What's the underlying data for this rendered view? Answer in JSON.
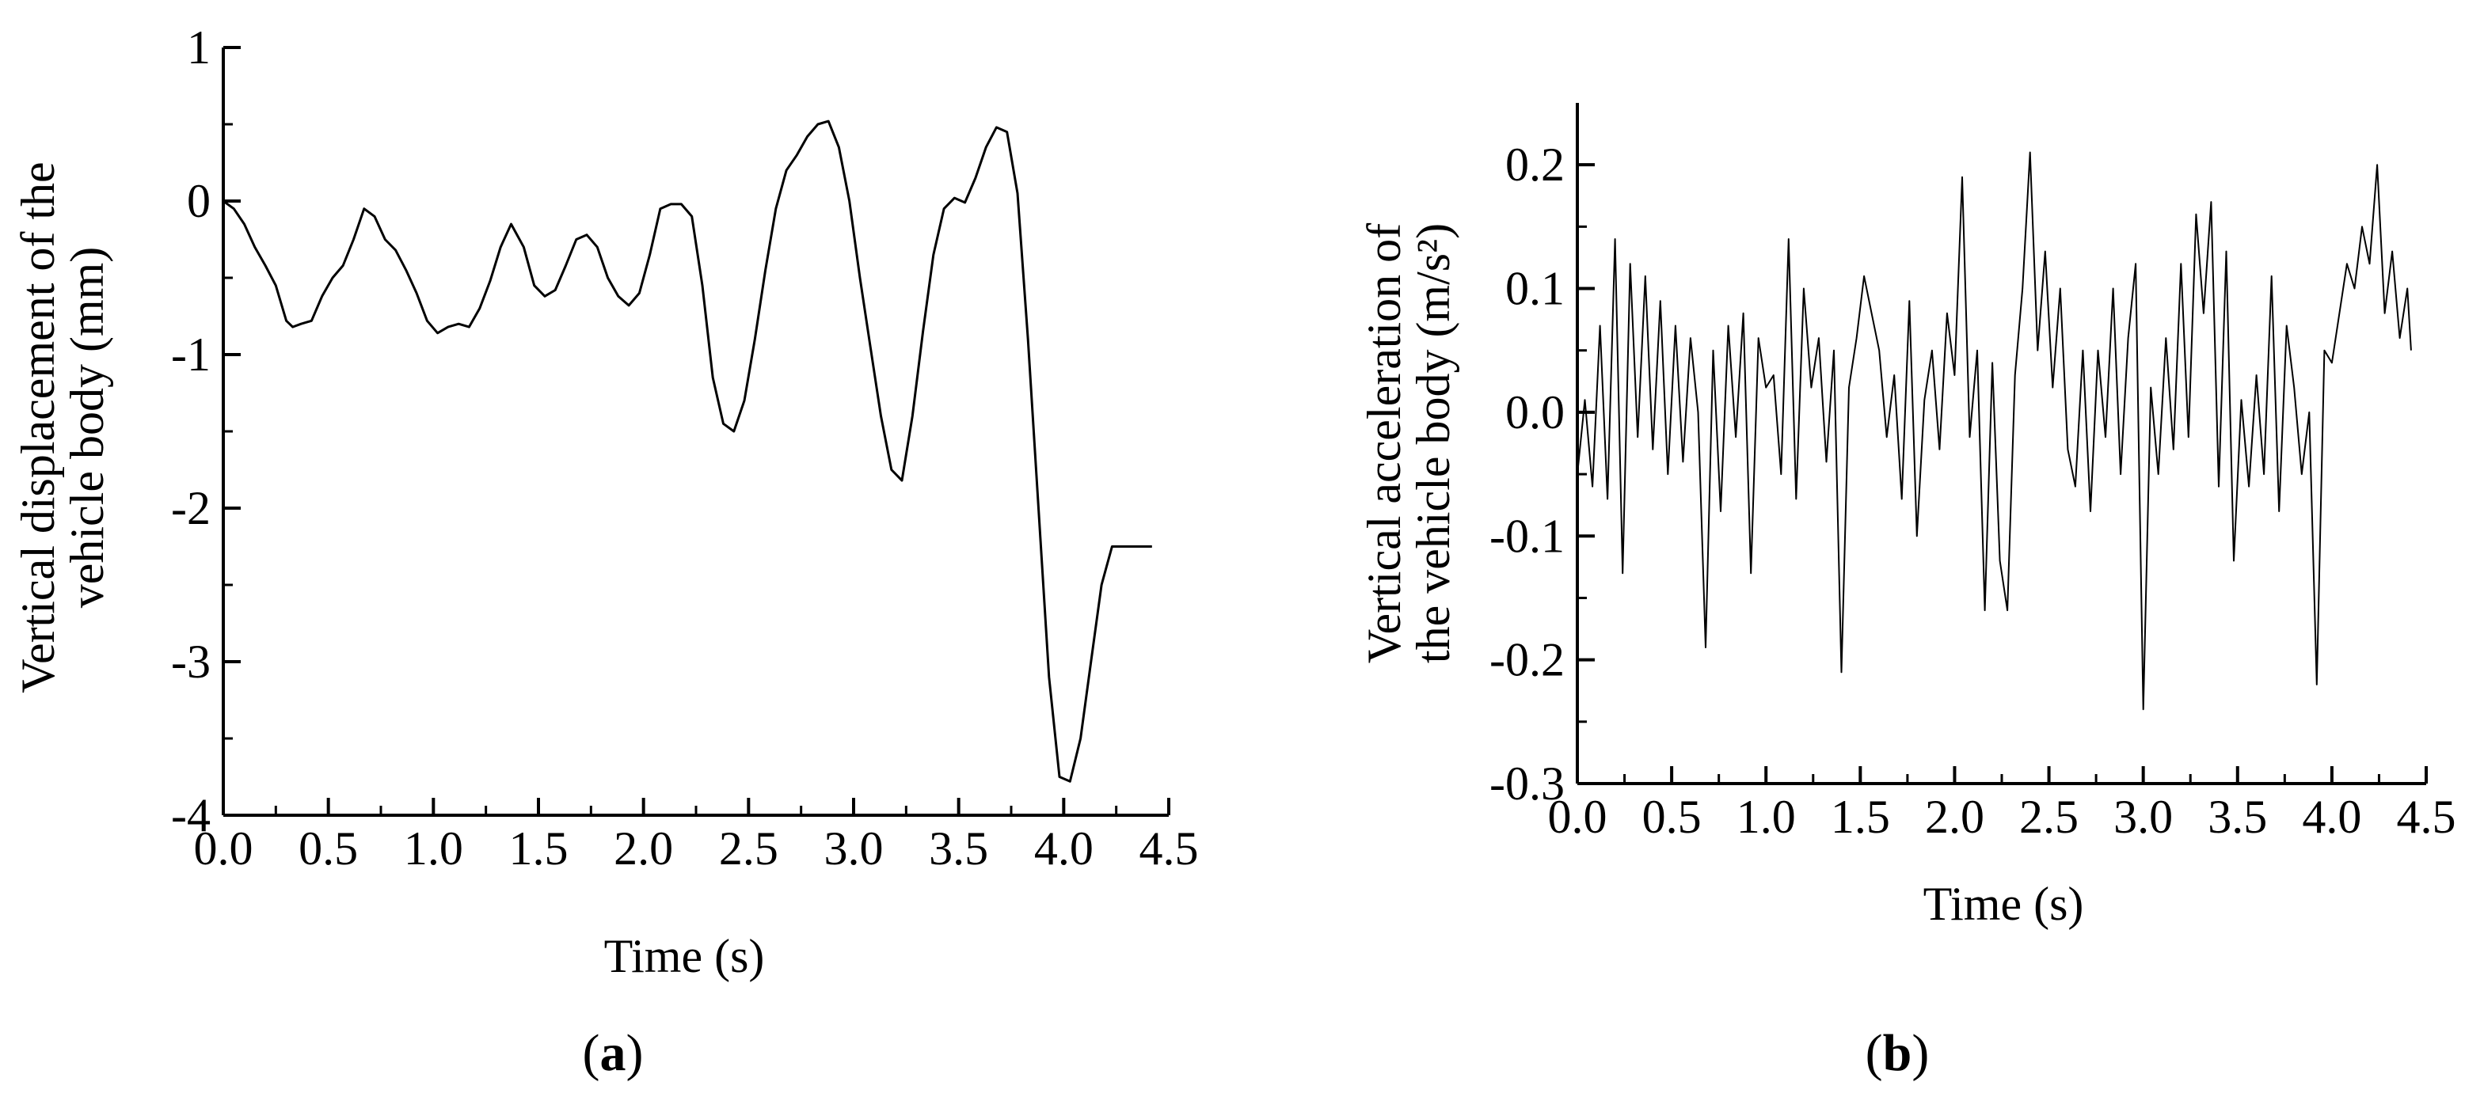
{
  "chart_data": [
    {
      "type": "line",
      "panel_label": {
        "open": "(",
        "letter": "a",
        "close": ")"
      },
      "xlabel": "Time (s)",
      "ylabel": [
        "Vertical displacement of the",
        "vehicle body (mm)"
      ],
      "xlim": [
        0.0,
        4.5
      ],
      "ylim": [
        -4,
        1
      ],
      "xticks": [
        "0.0",
        "0.5",
        "1.0",
        "1.5",
        "2.0",
        "2.5",
        "3.0",
        "3.5",
        "4.0",
        "4.5"
      ],
      "yticks": [
        "1",
        "0",
        "-1",
        "-2",
        "-3",
        "-4"
      ],
      "grid": false,
      "series": [
        {
          "x": [
            0.0,
            0.05,
            0.1,
            0.15,
            0.2,
            0.25,
            0.3,
            0.33,
            0.37,
            0.42,
            0.47,
            0.52,
            0.57,
            0.62,
            0.67,
            0.72,
            0.77,
            0.82,
            0.87,
            0.92,
            0.97,
            1.02,
            1.07,
            1.12,
            1.17,
            1.22,
            1.27,
            1.32,
            1.37,
            1.43,
            1.48,
            1.53,
            1.58,
            1.63,
            1.68,
            1.73,
            1.78,
            1.83,
            1.88,
            1.93,
            1.98,
            2.03,
            2.08,
            2.13,
            2.18,
            2.23,
            2.28,
            2.33,
            2.38,
            2.43,
            2.48,
            2.53,
            2.58,
            2.63,
            2.68,
            2.73,
            2.78,
            2.83,
            2.88,
            2.93,
            2.98,
            3.03,
            3.08,
            3.13,
            3.18,
            3.23,
            3.28,
            3.33,
            3.38,
            3.43,
            3.48,
            3.53,
            3.58,
            3.63,
            3.68,
            3.73,
            3.78,
            3.83,
            3.88,
            3.93,
            3.98,
            4.03,
            4.08,
            4.13,
            4.18,
            4.23,
            4.28,
            4.33,
            4.38,
            4.42
          ],
          "values": [
            0.0,
            -0.05,
            -0.15,
            -0.3,
            -0.42,
            -0.55,
            -0.78,
            -0.82,
            -0.8,
            -0.78,
            -0.62,
            -0.5,
            -0.42,
            -0.25,
            -0.05,
            -0.1,
            -0.25,
            -0.32,
            -0.45,
            -0.6,
            -0.78,
            -0.86,
            -0.82,
            -0.8,
            -0.82,
            -0.7,
            -0.52,
            -0.3,
            -0.15,
            -0.3,
            -0.55,
            -0.62,
            -0.58,
            -0.42,
            -0.25,
            -0.22,
            -0.3,
            -0.5,
            -0.62,
            -0.68,
            -0.6,
            -0.35,
            -0.05,
            -0.02,
            -0.02,
            -0.1,
            -0.55,
            -1.15,
            -1.45,
            -1.5,
            -1.3,
            -0.9,
            -0.45,
            -0.05,
            0.2,
            0.3,
            0.42,
            0.5,
            0.52,
            0.35,
            0.0,
            -0.5,
            -0.95,
            -1.4,
            -1.75,
            -1.82,
            -1.4,
            -0.85,
            -0.35,
            -0.05,
            0.02,
            -0.01,
            0.15,
            0.35,
            0.48,
            0.45,
            0.05,
            -0.9,
            -2.0,
            -3.1,
            -3.75,
            -3.78,
            -3.5,
            -3.0,
            -2.5,
            -2.25,
            -2.25,
            -2.25,
            -2.25,
            -2.25
          ]
        }
      ]
    },
    {
      "type": "line",
      "panel_label": {
        "open": "(",
        "letter": "b",
        "close": ")"
      },
      "xlabel": "Time (s)",
      "ylabel": [
        "Vertical acceleration of",
        "the vehicle body (m/s²)"
      ],
      "xlim": [
        0.0,
        4.5
      ],
      "ylim": [
        -0.3,
        0.25
      ],
      "xticks": [
        "0.0",
        "0.5",
        "1.0",
        "1.5",
        "2.0",
        "2.5",
        "3.0",
        "3.5",
        "4.0",
        "4.5"
      ],
      "yticks": [
        "0.2",
        "0.1",
        "0.0",
        "-0.1",
        "-0.2",
        "-0.3"
      ],
      "grid": false,
      "series": [
        {
          "x": [
            0.0,
            0.04,
            0.08,
            0.12,
            0.16,
            0.2,
            0.24,
            0.28,
            0.32,
            0.36,
            0.4,
            0.44,
            0.48,
            0.52,
            0.56,
            0.6,
            0.64,
            0.68,
            0.72,
            0.76,
            0.8,
            0.84,
            0.88,
            0.92,
            0.96,
            1.0,
            1.04,
            1.08,
            1.12,
            1.16,
            1.2,
            1.24,
            1.28,
            1.32,
            1.36,
            1.4,
            1.44,
            1.48,
            1.52,
            1.56,
            1.6,
            1.64,
            1.68,
            1.72,
            1.76,
            1.8,
            1.84,
            1.88,
            1.92,
            1.96,
            2.0,
            2.04,
            2.08,
            2.12,
            2.16,
            2.2,
            2.24,
            2.28,
            2.32,
            2.36,
            2.4,
            2.44,
            2.48,
            2.52,
            2.56,
            2.6,
            2.64,
            2.68,
            2.72,
            2.76,
            2.8,
            2.84,
            2.88,
            2.92,
            2.96,
            3.0,
            3.04,
            3.08,
            3.12,
            3.16,
            3.2,
            3.24,
            3.28,
            3.32,
            3.36,
            3.4,
            3.44,
            3.48,
            3.52,
            3.56,
            3.6,
            3.64,
            3.68,
            3.72,
            3.76,
            3.8,
            3.84,
            3.88,
            3.92,
            3.96,
            4.0,
            4.04,
            4.08,
            4.12,
            4.16,
            4.2,
            4.24,
            4.28,
            4.32,
            4.36,
            4.4,
            4.42
          ],
          "values": [
            -0.05,
            0.01,
            -0.06,
            0.07,
            -0.07,
            0.14,
            -0.13,
            0.12,
            -0.02,
            0.11,
            -0.03,
            0.09,
            -0.05,
            0.07,
            -0.04,
            0.06,
            0.0,
            -0.19,
            0.05,
            -0.08,
            0.07,
            -0.02,
            0.08,
            -0.13,
            0.06,
            0.02,
            0.03,
            -0.05,
            0.14,
            -0.07,
            0.1,
            0.02,
            0.06,
            -0.04,
            0.05,
            -0.21,
            0.02,
            0.06,
            0.11,
            0.08,
            0.05,
            -0.02,
            0.03,
            -0.07,
            0.09,
            -0.1,
            0.01,
            0.05,
            -0.03,
            0.08,
            0.03,
            0.19,
            -0.02,
            0.05,
            -0.16,
            0.04,
            -0.12,
            -0.16,
            0.03,
            0.1,
            0.21,
            0.05,
            0.13,
            0.02,
            0.1,
            -0.03,
            -0.06,
            0.05,
            -0.08,
            0.05,
            -0.02,
            0.1,
            -0.05,
            0.06,
            0.12,
            -0.24,
            0.02,
            -0.05,
            0.06,
            -0.03,
            0.12,
            -0.02,
            0.16,
            0.08,
            0.17,
            -0.06,
            0.13,
            -0.12,
            0.01,
            -0.06,
            0.03,
            -0.05,
            0.11,
            -0.08,
            0.07,
            0.02,
            -0.05,
            0.0,
            -0.22,
            0.05,
            0.04,
            0.08,
            0.12,
            0.1,
            0.15,
            0.12,
            0.2,
            0.08,
            0.13,
            0.06,
            0.1,
            0.05
          ]
        }
      ]
    }
  ]
}
